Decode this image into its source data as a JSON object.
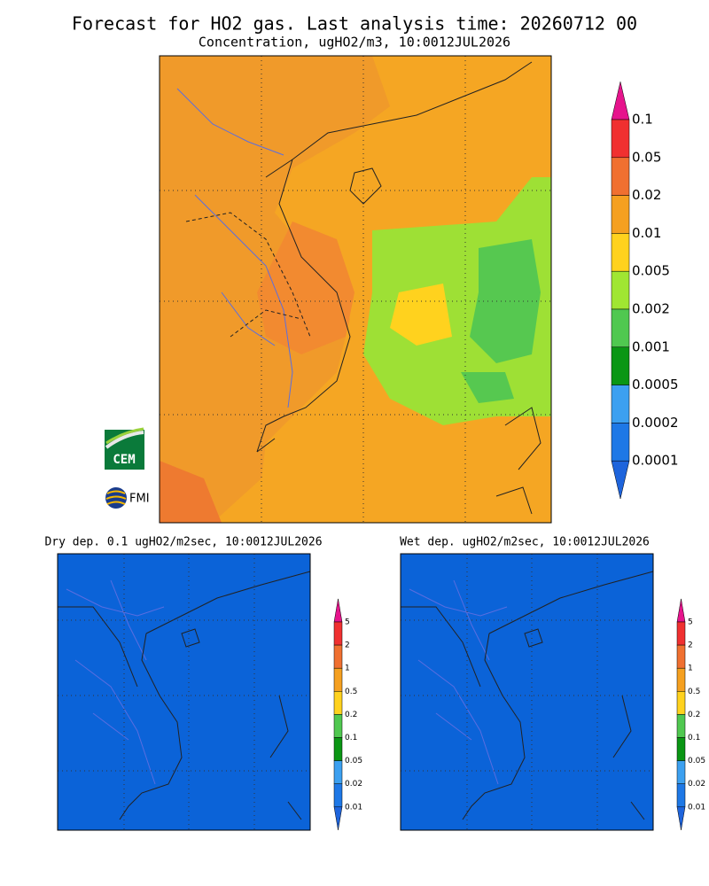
{
  "header": {
    "title": "Forecast for HO2 gas. Last analysis time: 20260712 00",
    "subtitle": "Concentration, ugHO2/m3, 10:0012JUL2026"
  },
  "main_colorbar": {
    "labels": [
      "0.1",
      "0.05",
      "0.02",
      "0.01",
      "0.005",
      "0.002",
      "0.001",
      "0.0005",
      "0.0002",
      "0.0001"
    ]
  },
  "panels": [
    {
      "title": "Dry dep. 0.1 ugHO2/m2sec, 10:0012JUL2026",
      "colorbar_labels": [
        "5",
        "2",
        "1",
        "0.5",
        "0.2",
        "0.1",
        "0.05",
        "0.02",
        "0.01"
      ]
    },
    {
      "title": "Wet dep. ugHO2/m2sec, 10:0012JUL2026",
      "colorbar_labels": [
        "5",
        "2",
        "1",
        "0.5",
        "0.2",
        "0.1",
        "0.05",
        "0.02",
        "0.01"
      ]
    }
  ],
  "logos": {
    "cem": "CEM",
    "fmi": "FMI"
  }
}
